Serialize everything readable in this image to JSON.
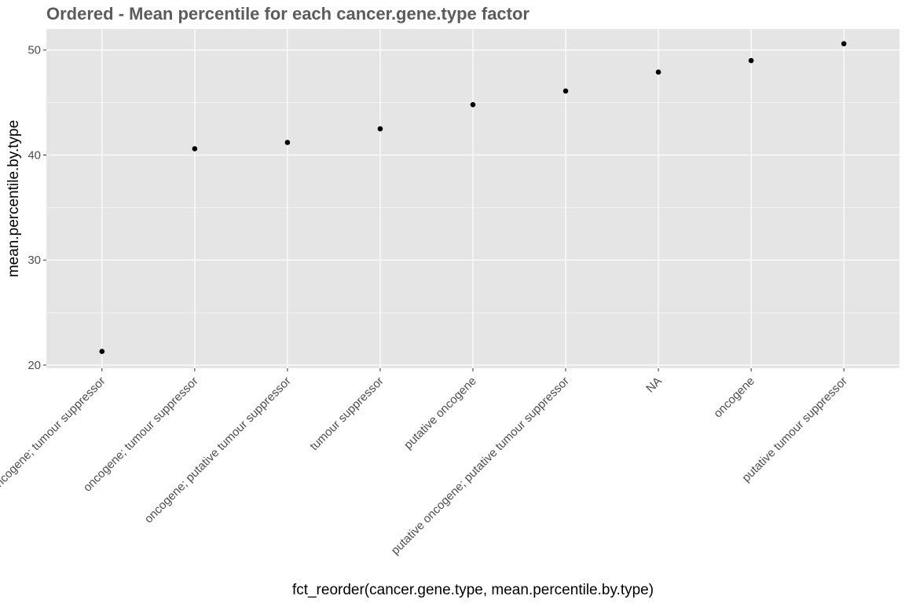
{
  "chart_data": {
    "type": "scatter",
    "title": "Ordered - Mean percentile for each cancer.gene.type factor",
    "xlabel": "fct_reorder(cancer.gene.type, mean.percentile.by.type)",
    "ylabel": "mean.percentile.by.type",
    "categories": [
      "oncogene; tumour suppressor",
      "oncogene; tumour suppressor",
      "oncogene; putative tumour suppressor",
      "tumour suppressor",
      "putative oncogene",
      "putative oncogene; putative tumour suppressor",
      "NA",
      "oncogene",
      "putative tumour suppressor"
    ],
    "values": [
      21.3,
      40.6,
      41.2,
      42.5,
      44.8,
      46.1,
      47.9,
      49.0,
      50.6
    ],
    "ylim": [
      19.7,
      52.0
    ],
    "yticks": [
      20,
      30,
      40,
      50
    ],
    "ytick_labels": [
      "20",
      "30",
      "40",
      "50"
    ],
    "grid": true,
    "background": "#e5e5e5",
    "grid_color": "#ffffff",
    "point_color": "#000000"
  }
}
